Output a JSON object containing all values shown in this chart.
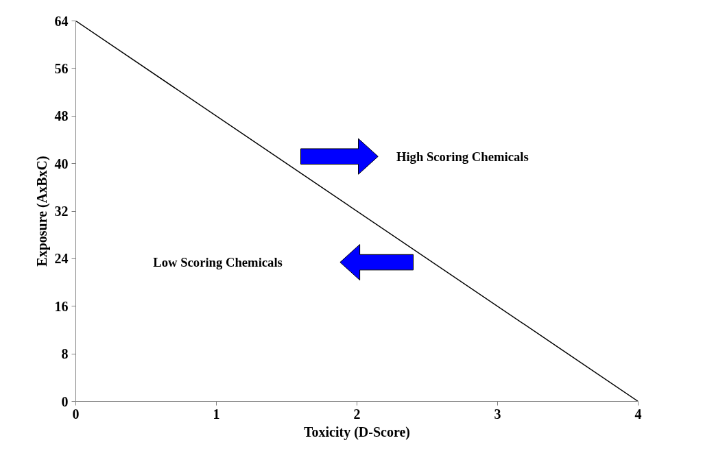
{
  "chart_data": {
    "type": "line",
    "xlabel": "Toxicity (D-Score)",
    "ylabel": "Exposure (AxBxC)",
    "x": [
      0,
      4
    ],
    "series": [
      {
        "color": "#000000",
        "values": [
          64,
          0
        ]
      }
    ],
    "xlim": [
      0,
      4
    ],
    "xticks": [
      0,
      1,
      2,
      3,
      4
    ],
    "ylim": [
      0,
      64
    ],
    "yticks": [
      0,
      8,
      16,
      24,
      32,
      40,
      48,
      56,
      64
    ],
    "annotations": [
      "High Scoring Chemicals",
      "Low Scoring Chemicals"
    ],
    "grid": false,
    "marker": "none",
    "line_style": "solid"
  }
}
